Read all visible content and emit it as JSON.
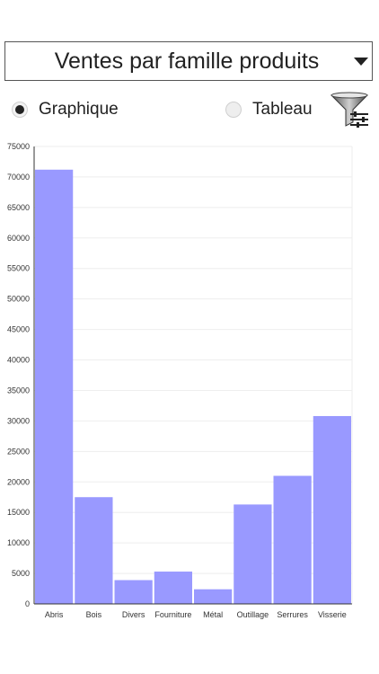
{
  "header": {
    "select_value": "Ventes par famille produits"
  },
  "view_toggle": {
    "graph_label": "Graphique",
    "table_label": "Tableau",
    "selected": "graph"
  },
  "icons": {
    "dropdown": "chevron-down-icon",
    "filter": "filter-settings-icon"
  },
  "colors": {
    "bar": "#9999ff",
    "grid": "#eeeeee"
  },
  "chart_data": {
    "type": "bar",
    "categories": [
      "Abris",
      "Bois",
      "Divers",
      "Fourniture",
      "Métal",
      "Outillage",
      "Serrures",
      "Visserie"
    ],
    "values": [
      71200,
      17500,
      3900,
      5300,
      2400,
      16300,
      21000,
      30800
    ],
    "y_ticks": [
      "0",
      "5000",
      "10000",
      "15000",
      "20000",
      "25000",
      "30000",
      "35000",
      "40000",
      "45000",
      "50000",
      "55000",
      "60000",
      "65000",
      "70000",
      "75000"
    ],
    "ylim": [
      0,
      75000
    ],
    "grid": true
  }
}
